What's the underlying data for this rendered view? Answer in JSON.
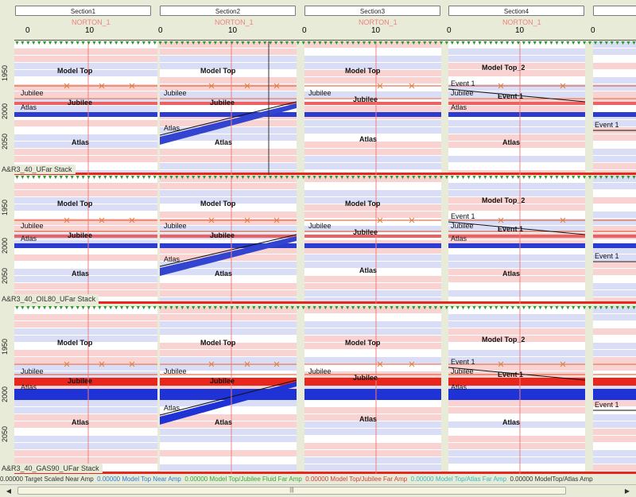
{
  "header": {
    "sections": [
      "Section1",
      "Section2",
      "Section3",
      "Section4",
      ""
    ],
    "well_label": "NORTON_1",
    "tick_labels": [
      "0",
      "10",
      "0",
      "10",
      "0",
      "10",
      "0",
      "10",
      "0"
    ]
  },
  "depth_ticks": [
    "1950",
    "2000",
    "2050"
  ],
  "panels": [
    {
      "label": "A&R3_40_UFar Stack"
    },
    {
      "label": "A&R3_40_OIL80_UFar Stack"
    },
    {
      "label": "A&R3_40_GAS90_UFar Stack"
    }
  ],
  "horizons": {
    "model_top": "Model Top",
    "model_top_2": "Model Top_2",
    "jubilee": "Jubilee",
    "atlas": "Atlas",
    "event_1": "Event 1"
  },
  "statusbar": {
    "segments": [
      {
        "text": "0.00000 Target Scaled Near Amp",
        "color": "#333333"
      },
      {
        "text": "0.00000 Model Top Near Amp",
        "color": "#2a7bd4"
      },
      {
        "text": "0.00000 Model Top/Jubilee Fluid Far Amp",
        "color": "#3aa83a"
      },
      {
        "text": "0.00000 Model Top/Jubilee Far Amp",
        "color": "#d43a3a"
      },
      {
        "text": "0.00000 Model Top/Atlas Far Amp",
        "color": "#33bbbb"
      },
      {
        "text": "0.00000 ModelTop/Atlas Amp",
        "color": "#333333"
      }
    ]
  },
  "scrollbar": {
    "left_arrow": "◀",
    "right_arrow": "▶",
    "thumb_grip": "|||"
  },
  "colors": {
    "background": "#e7ebd7",
    "well_line": "#f08080",
    "horizon_line": "#e05020",
    "triangle": "#2b9a2b"
  }
}
